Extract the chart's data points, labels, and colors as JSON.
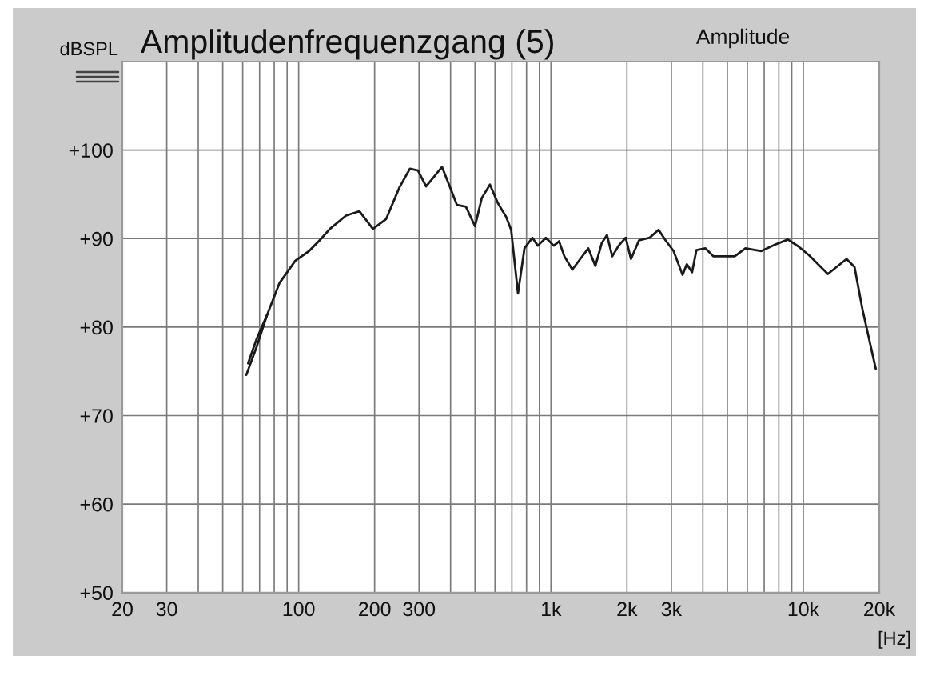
{
  "chart_data": {
    "type": "line",
    "title": "Amplitudenfrequenzgang (5)",
    "subtitle": "Amplitude",
    "xlabel": "[Hz]",
    "ylabel": "dBSPL",
    "log": "x",
    "xlim": [
      20,
      20000
    ],
    "xticks": [
      20,
      30,
      {
        "value": 40,
        "label": null
      },
      {
        "value": 50,
        "label": null
      },
      {
        "value": 60,
        "label": null
      },
      {
        "value": 70,
        "label": null
      },
      {
        "value": 80,
        "label": null
      },
      {
        "value": 90,
        "label": null
      },
      100,
      200,
      300,
      {
        "value": 400,
        "label": null
      },
      {
        "value": 500,
        "label": null
      },
      {
        "value": 600,
        "label": null
      },
      {
        "value": 700,
        "label": null
      },
      {
        "value": 800,
        "label": null
      },
      {
        "value": 900,
        "label": null
      },
      {
        "value": 1000,
        "label": "1k"
      },
      {
        "value": 2000,
        "label": "2k"
      },
      {
        "value": 3000,
        "label": "3k"
      },
      {
        "value": 4000,
        "label": null
      },
      {
        "value": 5000,
        "label": null
      },
      {
        "value": 6000,
        "label": null
      },
      {
        "value": 7000,
        "label": null
      },
      {
        "value": 8000,
        "label": null
      },
      {
        "value": 9000,
        "label": null
      },
      {
        "value": 10000,
        "label": "10k"
      },
      {
        "value": 20000,
        "label": "20k"
      }
    ],
    "ylim": [
      50,
      110
    ],
    "yticks": [
      {
        "value": 50,
        "label": "+50"
      },
      {
        "value": 60,
        "label": "+60"
      },
      {
        "value": 70,
        "label": "+70"
      },
      {
        "value": 80,
        "label": "+80"
      },
      {
        "value": 90,
        "label": "+90"
      },
      {
        "value": 100,
        "label": "+100"
      }
    ],
    "grid": true,
    "line_style": "solid",
    "series": [
      {
        "color": "#1a1a1a",
        "x": [
          62,
          68,
          75,
          84,
          97,
          110,
          121,
          133,
          154,
          174,
          197,
          222,
          251,
          276,
          297,
          320,
          344,
          370,
          398,
          424,
          460,
          500,
          532,
          573,
          616,
          663,
          695,
          740,
          785,
          844,
          887,
          954,
          1026,
          1077,
          1130,
          1215,
          1306,
          1406,
          1499,
          1589,
          1667,
          1749,
          1854,
          1977,
          2075,
          2232,
          2460,
          2670,
          2846,
          3061,
          3322,
          3454,
          3624,
          3770,
          4096,
          4406,
          4852,
          5348,
          5896,
          6822,
          7698,
          8690,
          9580,
          10560,
          12510,
          14840,
          15960,
          17160,
          19370
        ],
        "values": [
          74.6,
          77.7,
          81.4,
          85.0,
          87.5,
          88.6,
          89.8,
          91.1,
          92.6,
          93.1,
          91.1,
          92.2,
          95.8,
          97.9,
          97.7,
          95.9,
          97.0,
          98.1,
          95.8,
          93.8,
          93.6,
          91.4,
          94.6,
          96.1,
          94.0,
          92.5,
          91.0,
          83.8,
          88.9,
          90.1,
          89.2,
          90.1,
          89.2,
          89.7,
          88.0,
          86.5,
          87.7,
          88.9,
          86.9,
          89.5,
          90.4,
          88.0,
          89.2,
          90.1,
          87.7,
          89.8,
          90.1,
          91.0,
          89.8,
          88.6,
          85.9,
          87.1,
          86.2,
          88.7,
          88.9,
          88.0,
          88.0,
          88.0,
          88.9,
          88.6,
          89.3,
          89.9,
          89.1,
          88.1,
          86.0,
          87.7,
          86.8,
          82.0,
          75.3
        ]
      },
      {
        "color": "#1a1a1a",
        "x": [
          63,
          68,
          75
        ],
        "values": [
          75.9,
          78.6,
          81.4
        ]
      }
    ]
  }
}
